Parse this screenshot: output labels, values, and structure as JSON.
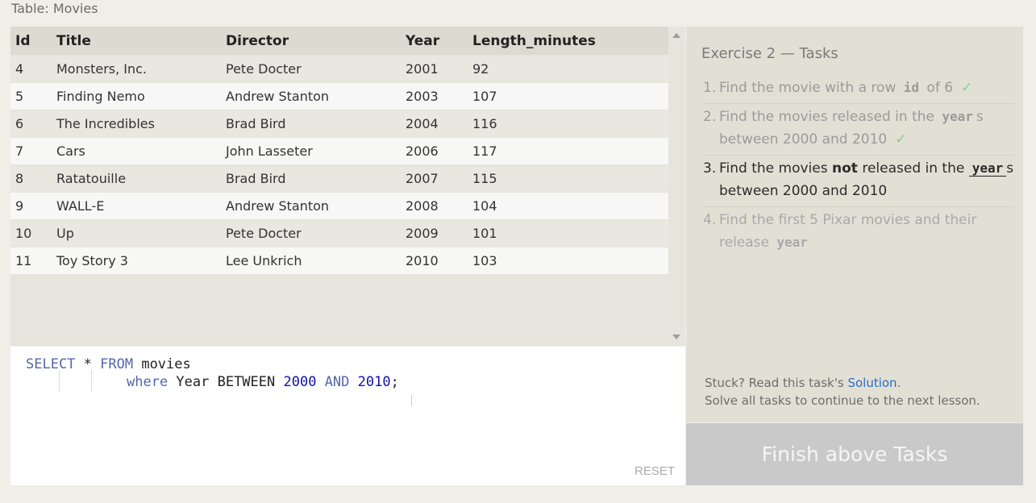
{
  "table_title": "Table: Movies",
  "columns": [
    "Id",
    "Title",
    "Director",
    "Year",
    "Length_minutes"
  ],
  "rows": [
    [
      "4",
      "Monsters, Inc.",
      "Pete Docter",
      "2001",
      "92"
    ],
    [
      "5",
      "Finding Nemo",
      "Andrew Stanton",
      "2003",
      "107"
    ],
    [
      "6",
      "The Incredibles",
      "Brad Bird",
      "2004",
      "116"
    ],
    [
      "7",
      "Cars",
      "John Lasseter",
      "2006",
      "117"
    ],
    [
      "8",
      "Ratatouille",
      "Brad Bird",
      "2007",
      "115"
    ],
    [
      "9",
      "WALL-E",
      "Andrew Stanton",
      "2008",
      "104"
    ],
    [
      "10",
      "Up",
      "Pete Docter",
      "2009",
      "101"
    ],
    [
      "11",
      "Toy Story 3",
      "Lee Unkrich",
      "2010",
      "103"
    ]
  ],
  "editor": {
    "line1": {
      "kw1": "SELECT",
      "text1": " * ",
      "kw2": "FROM",
      "text2": " movies"
    },
    "line2": {
      "kw1": "where",
      "text1": " Year BETWEEN ",
      "num1": "2000",
      "text2": " ",
      "kw2": "AND",
      "text3": " ",
      "num2": "2010",
      "text4": ";"
    },
    "reset_label": "RESET"
  },
  "tasks": {
    "title": "Exercise 2 — Tasks",
    "items": [
      {
        "num": "1.",
        "pre": "Find the movie with a row ",
        "code": "id",
        "post": " of 6",
        "status": "done"
      },
      {
        "num": "2.",
        "pre": "Find the movies released in the ",
        "code": "year",
        "post": "s between 2000 and 2010",
        "status": "done"
      },
      {
        "num": "3.",
        "pre": "Find the movies ",
        "bold": "not",
        "mid": " released in the ",
        "code": "year",
        "post": "s between 2000 and 2010",
        "status": "current"
      },
      {
        "num": "4.",
        "pre": "Find the first 5 Pixar movies and their release ",
        "code": "year",
        "post": "",
        "status": "pending"
      }
    ],
    "check_glyph": "✓",
    "stuck_text": "Stuck? Read this task's ",
    "solution_link": "Solution",
    "stuck_end": ".",
    "continue_text": "Solve all tasks to continue to the next lesson."
  },
  "finish_button": "Finish above Tasks",
  "colors": {
    "check": "#8fc98f",
    "link": "#2a6ec7",
    "keyword": "#5566aa",
    "number": "#1111aa"
  }
}
